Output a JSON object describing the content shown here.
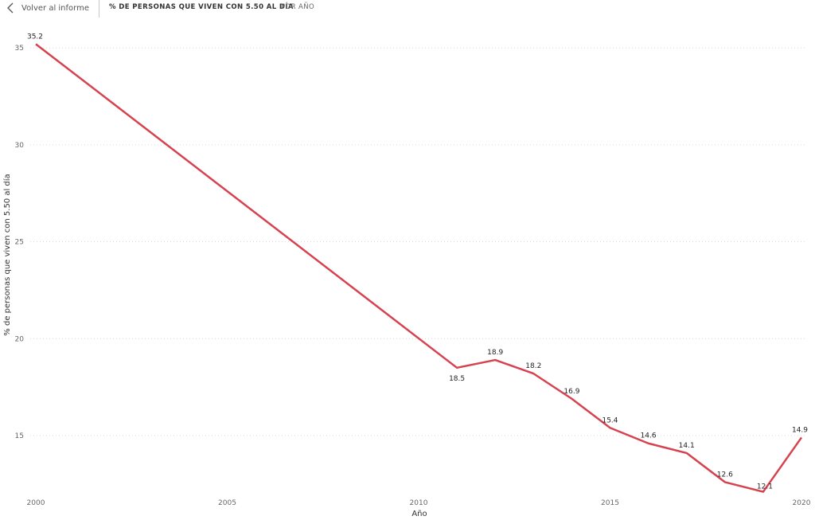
{
  "header": {
    "back_label": "Volver al informe",
    "title": "% DE PERSONAS QUE VIVEN CON 5.50 AL DÍA",
    "subtitle": "POR AÑO"
  },
  "chart_data": {
    "type": "line",
    "x": [
      2000,
      2011,
      2012,
      2013,
      2014,
      2015,
      2016,
      2017,
      2018,
      2019,
      2020
    ],
    "series": [
      {
        "values": [
          35.2,
          18.5,
          18.9,
          18.2,
          16.9,
          15.4,
          14.6,
          14.1,
          12.6,
          12.1,
          14.9
        ],
        "labels": [
          "35.2",
          "18.5",
          "18.9",
          "18.2",
          "16.9",
          "15.4",
          "14.6",
          "14.1",
          "12.6",
          "12.1",
          "14.9"
        ],
        "color": "#d6424f"
      }
    ],
    "xlabel": "Año",
    "ylabel": "% de personas que viven con 5.50 al día",
    "xlim": [
      2000,
      2020
    ],
    "ylim": [
      12,
      36
    ],
    "xticks": [
      "2000",
      "2005",
      "2010",
      "2015",
      "2020"
    ],
    "yticks": [
      "15",
      "20",
      "25",
      "30",
      "35"
    ],
    "grid": "horizontal dotted"
  }
}
